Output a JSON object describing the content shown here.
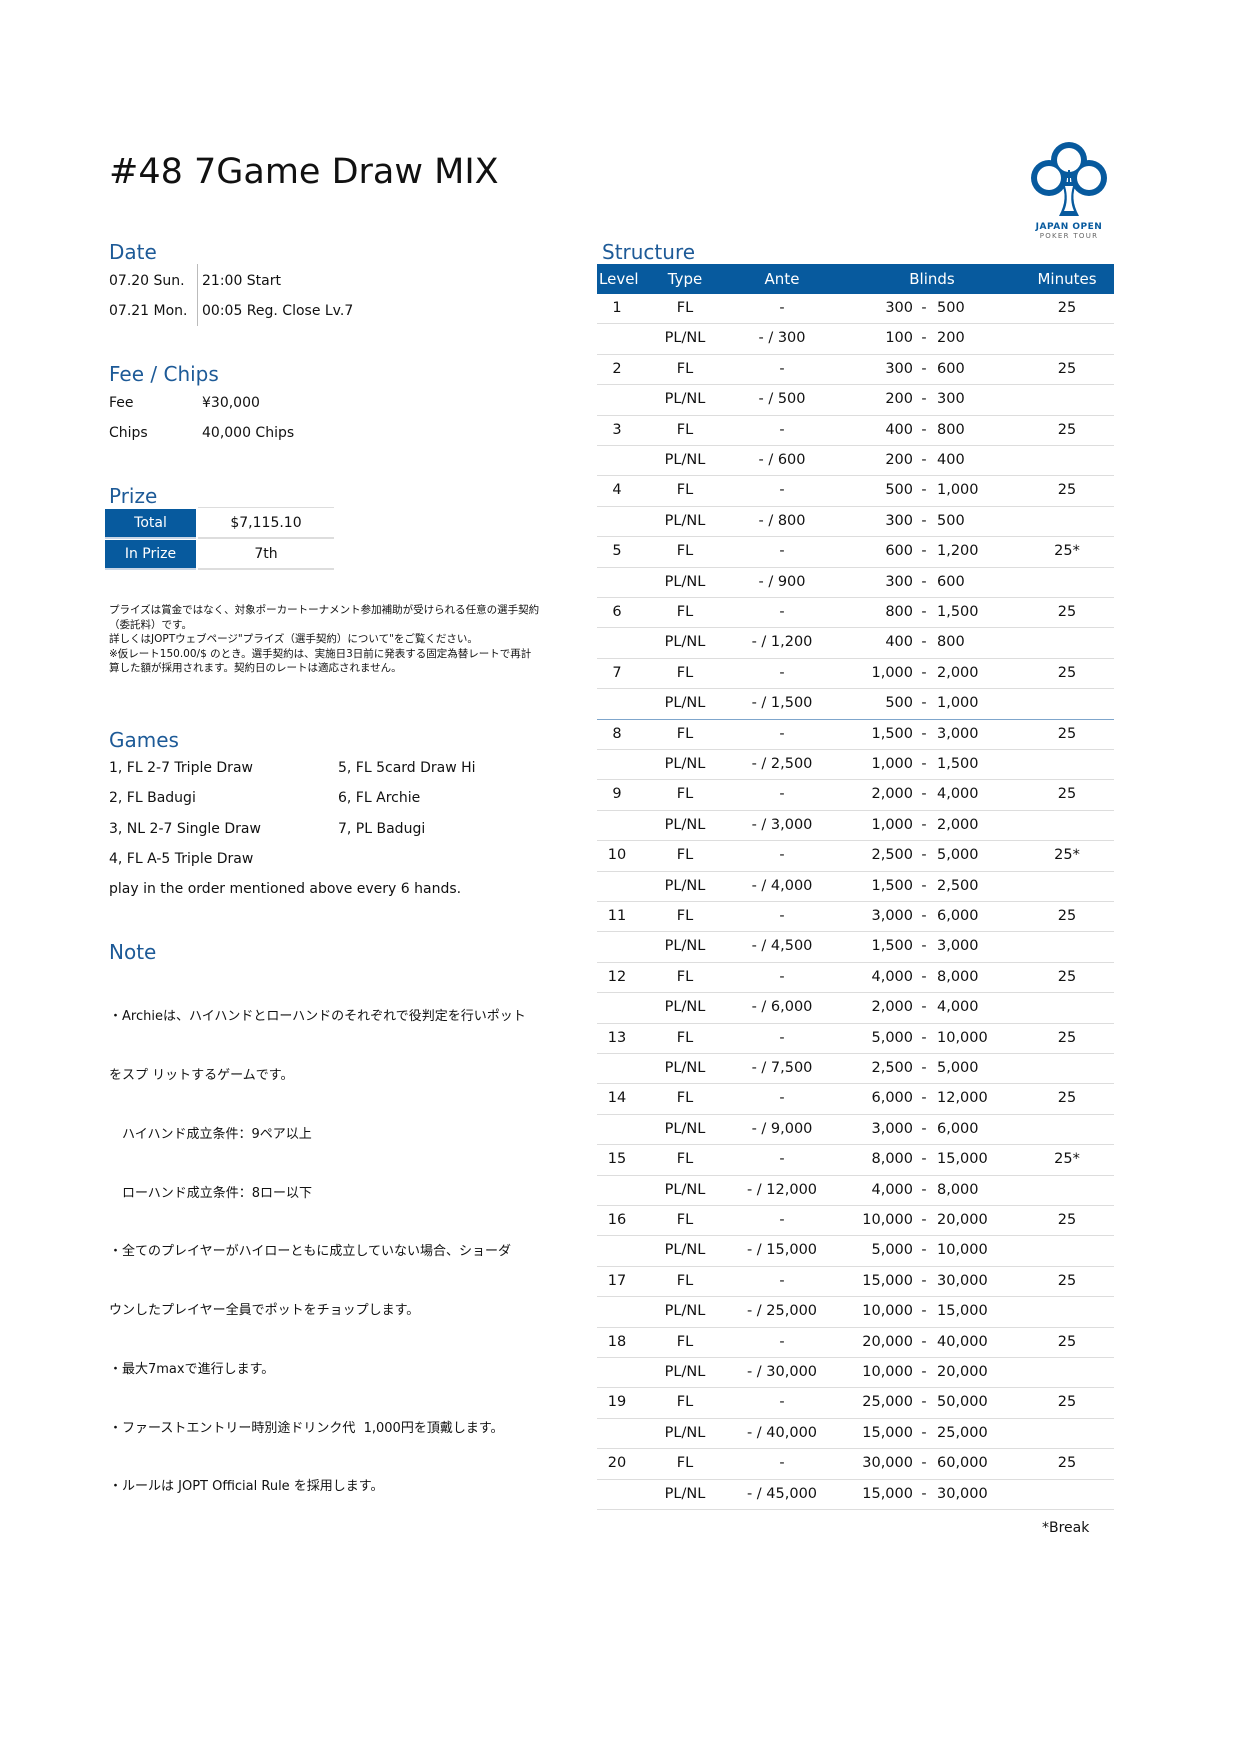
{
  "title": "#48 7Game Draw MIX",
  "logo": {
    "line1": "JAPAN OPEN",
    "line2": "POKER TOUR",
    "color": "#075a9e"
  },
  "date": {
    "heading": "Date",
    "rows": [
      {
        "day": "07.20 Sun.",
        "event": "21:00 Start"
      },
      {
        "day": "07.21 Mon.",
        "event": "00:05 Reg. Close Lv.7"
      }
    ]
  },
  "fee_chips": {
    "heading": "Fee / Chips",
    "fee_label": "Fee",
    "fee_value": "¥30,000",
    "chips_label": "Chips",
    "chips_value": "40,000 Chips"
  },
  "prize": {
    "heading": "Prize",
    "total_label": "Total",
    "total_value": "$7,115.10",
    "inprize_label": "In Prize",
    "inprize_value": "7th",
    "notice": [
      "プライズは賞金ではなく、対象ポーカートーナメント参加補助が受けられる任意の選手契約",
      "（委託料）です。",
      "詳しくはJOPTウェブページ\"プライズ（選手契約）について\"をご覧ください。",
      "※仮レート150.00/$ のとき。選手契約は、実施日3日前に発表する固定為替レートで再計",
      "算した額が採用されます。契約日のレートは適応されません。"
    ]
  },
  "games": {
    "heading": "Games",
    "items": [
      "1, FL 2-7 Triple Draw",
      "2, FL Badugi",
      "3, NL 2-7 Single Draw",
      "4, FL A-5 Triple Draw",
      "5, FL 5card Draw Hi",
      "6, FL Archie",
      "7, PL Badugi"
    ],
    "footer": "play in the order mentioned above every 6 hands."
  },
  "note": {
    "heading": "Note",
    "lines": [
      "・Archieは、ハイハンドとローハンドのそれぞれで役判定を行いポット",
      "をスプ リットするゲームです。",
      "　ハイハンド成立条件：9ペア以上",
      "　ローハンド成立条件：8ロー以下",
      "・全てのプレイヤーがハイローともに成立していない場合、ショーダ",
      "ウンしたプレイヤー全員でポットをチョップします。",
      "・最大7maxで進行します。",
      "・ファーストエントリー時別途ドリンク代  1,000円を頂戴します。",
      "・ルールは JOPT Official Rule を採用します。"
    ]
  },
  "structure": {
    "heading": "Structure",
    "columns": [
      "Level",
      "Type",
      "Ante",
      "Blinds",
      "Minutes"
    ],
    "rows": [
      [
        "1",
        "FL",
        "-",
        "300",
        "500",
        "25"
      ],
      [
        "",
        "PL/NL",
        "- / 300",
        "100",
        "200",
        ""
      ],
      [
        "2",
        "FL",
        "-",
        "300",
        "600",
        "25"
      ],
      [
        "",
        "PL/NL",
        "- / 500",
        "200",
        "300",
        ""
      ],
      [
        "3",
        "FL",
        "-",
        "400",
        "800",
        "25"
      ],
      [
        "",
        "PL/NL",
        "- / 600",
        "200",
        "400",
        ""
      ],
      [
        "4",
        "FL",
        "-",
        "500",
        "1,000",
        "25"
      ],
      [
        "",
        "PL/NL",
        "- / 800",
        "300",
        "500",
        ""
      ],
      [
        "5",
        "FL",
        "-",
        "600",
        "1,200",
        "25*"
      ],
      [
        "",
        "PL/NL",
        "- / 900",
        "300",
        "600",
        ""
      ],
      [
        "6",
        "FL",
        "-",
        "800",
        "1,500",
        "25"
      ],
      [
        "",
        "PL/NL",
        "- / 1,200",
        "400",
        "800",
        ""
      ],
      [
        "7",
        "FL",
        "-",
        "1,000",
        "2,000",
        "25"
      ],
      [
        "",
        "PL/NL",
        "- / 1,500",
        "500",
        "1,000",
        ""
      ],
      [
        "8",
        "FL",
        "-",
        "1,500",
        "3,000",
        "25"
      ],
      [
        "",
        "PL/NL",
        "- / 2,500",
        "1,000",
        "1,500",
        ""
      ],
      [
        "9",
        "FL",
        "-",
        "2,000",
        "4,000",
        "25"
      ],
      [
        "",
        "PL/NL",
        "- / 3,000",
        "1,000",
        "2,000",
        ""
      ],
      [
        "10",
        "FL",
        "-",
        "2,500",
        "5,000",
        "25*"
      ],
      [
        "",
        "PL/NL",
        "- / 4,000",
        "1,500",
        "2,500",
        ""
      ],
      [
        "11",
        "FL",
        "-",
        "3,000",
        "6,000",
        "25"
      ],
      [
        "",
        "PL/NL",
        "- / 4,500",
        "1,500",
        "3,000",
        ""
      ],
      [
        "12",
        "FL",
        "-",
        "4,000",
        "8,000",
        "25"
      ],
      [
        "",
        "PL/NL",
        "- / 6,000",
        "2,000",
        "4,000",
        ""
      ],
      [
        "13",
        "FL",
        "-",
        "5,000",
        "10,000",
        "25"
      ],
      [
        "",
        "PL/NL",
        "- / 7,500",
        "2,500",
        "5,000",
        ""
      ],
      [
        "14",
        "FL",
        "-",
        "6,000",
        "12,000",
        "25"
      ],
      [
        "",
        "PL/NL",
        "- / 9,000",
        "3,000",
        "6,000",
        ""
      ],
      [
        "15",
        "FL",
        "-",
        "8,000",
        "15,000",
        "25*"
      ],
      [
        "",
        "PL/NL",
        "- / 12,000",
        "4,000",
        "8,000",
        ""
      ],
      [
        "16",
        "FL",
        "-",
        "10,000",
        "20,000",
        "25"
      ],
      [
        "",
        "PL/NL",
        "- / 15,000",
        "5,000",
        "10,000",
        ""
      ],
      [
        "17",
        "FL",
        "-",
        "15,000",
        "30,000",
        "25"
      ],
      [
        "",
        "PL/NL",
        "- / 25,000",
        "10,000",
        "15,000",
        ""
      ],
      [
        "18",
        "FL",
        "-",
        "20,000",
        "40,000",
        "25"
      ],
      [
        "",
        "PL/NL",
        "- / 30,000",
        "10,000",
        "20,000",
        ""
      ],
      [
        "19",
        "FL",
        "-",
        "25,000",
        "50,000",
        "25"
      ],
      [
        "",
        "PL/NL",
        "- / 40,000",
        "15,000",
        "25,000",
        ""
      ],
      [
        "20",
        "FL",
        "-",
        "30,000",
        "60,000",
        "25"
      ],
      [
        "",
        "PL/NL",
        "- / 45,000",
        "15,000",
        "30,000",
        ""
      ]
    ],
    "blinds_separator": "-",
    "break_note": "*Break",
    "accent_color": "#075a9e"
  }
}
